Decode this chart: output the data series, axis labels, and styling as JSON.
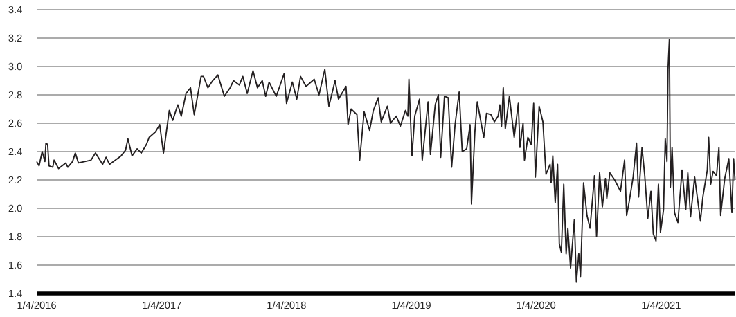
{
  "chart_data": {
    "type": "line",
    "color": "#231f20",
    "grid": "y",
    "xlim": [
      "2016-01-04",
      "2021-08-09"
    ],
    "ylim": [
      1.4,
      3.4
    ],
    "xticks": [
      {
        "value": "2016-01-04",
        "label": "1/4/2016"
      },
      {
        "value": "2017-01-04",
        "label": "1/4/2017"
      },
      {
        "value": "2018-01-04",
        "label": "1/4/2018"
      },
      {
        "value": "2019-01-04",
        "label": "1/4/2019"
      },
      {
        "value": "2020-01-04",
        "label": "1/4/2020"
      },
      {
        "value": "2021-01-04",
        "label": "1/4/2021"
      }
    ],
    "yticks": [
      1.4,
      1.6,
      1.8,
      {
        "value": 2,
        "label": "2.0"
      },
      2.2,
      2.4,
      2.6,
      2.8,
      {
        "value": 3,
        "label": "3.0"
      },
      3.2,
      3.4
    ],
    "x": [
      "2016-01-04",
      "2016-01-11",
      "2016-01-20",
      "2016-01-28",
      "2016-01-31",
      "2016-02-05",
      "2016-02-09",
      "2016-02-20",
      "2016-02-24",
      "2016-03-08",
      "2016-03-29",
      "2016-04-04",
      "2016-04-18",
      "2016-04-26",
      "2016-05-05",
      "2016-06-11",
      "2016-06-24",
      "2016-07-15",
      "2016-07-25",
      "2016-08-04",
      "2016-09-07",
      "2016-09-20",
      "2016-09-27",
      "2016-10-09",
      "2016-10-24",
      "2016-11-05",
      "2016-11-20",
      "2016-11-28",
      "2016-12-17",
      "2016-12-29",
      "2017-01-09",
      "2017-01-26",
      "2017-02-05",
      "2017-02-20",
      "2017-03-02",
      "2017-03-16",
      "2017-03-29",
      "2017-04-09",
      "2017-04-29",
      "2017-05-06",
      "2017-05-19",
      "2017-06-02",
      "2017-06-17",
      "2017-07-06",
      "2017-07-23",
      "2017-08-02",
      "2017-08-19",
      "2017-08-29",
      "2017-09-11",
      "2017-09-28",
      "2017-10-11",
      "2017-10-25",
      "2017-11-04",
      "2017-11-14",
      "2017-12-05",
      "2017-12-28",
      "2018-01-04",
      "2018-01-21",
      "2018-02-03",
      "2018-02-14",
      "2018-03-02",
      "2018-03-26",
      "2018-04-09",
      "2018-04-26",
      "2018-05-08",
      "2018-05-26",
      "2018-06-05",
      "2018-06-27",
      "2018-07-03",
      "2018-07-12",
      "2018-07-29",
      "2018-08-06",
      "2018-08-19",
      "2018-09-04",
      "2018-09-15",
      "2018-09-29",
      "2018-10-08",
      "2018-10-26",
      "2018-11-04",
      "2018-11-21",
      "2018-12-03",
      "2018-12-18",
      "2018-12-25",
      "2018-12-28",
      "2019-01-06",
      "2019-01-14",
      "2019-01-28",
      "2019-02-05",
      "2019-02-22",
      "2019-03-01",
      "2019-03-15",
      "2019-03-24",
      "2019-03-31",
      "2019-04-11",
      "2019-04-22",
      "2019-05-02",
      "2019-05-12",
      "2019-05-24",
      "2019-06-02",
      "2019-06-15",
      "2019-06-25",
      "2019-06-29",
      "2019-07-09",
      "2019-07-16",
      "2019-08-04",
      "2019-08-12",
      "2019-08-25",
      "2019-09-04",
      "2019-09-15",
      "2019-09-20",
      "2019-09-25",
      "2019-09-30",
      "2019-10-06",
      "2019-10-18",
      "2019-11-01",
      "2019-11-13",
      "2019-11-18",
      "2019-11-27",
      "2019-12-01",
      "2019-12-11",
      "2019-12-21",
      "2019-12-28",
      "2020-01-02",
      "2020-01-13",
      "2020-01-24",
      "2020-02-02",
      "2020-02-14",
      "2020-02-17",
      "2020-02-22",
      "2020-02-29",
      "2020-03-07",
      "2020-03-12",
      "2020-03-18",
      "2020-03-25",
      "2020-04-01",
      "2020-04-06",
      "2020-04-14",
      "2020-04-25",
      "2020-05-01",
      "2020-05-08",
      "2020-05-13",
      "2020-05-22",
      "2020-06-01",
      "2020-06-10",
      "2020-06-23",
      "2020-06-29",
      "2020-07-08",
      "2020-07-16",
      "2020-07-25",
      "2020-07-29",
      "2020-08-07",
      "2020-08-21",
      "2020-09-07",
      "2020-09-19",
      "2020-09-25",
      "2020-10-02",
      "2020-10-14",
      "2020-10-24",
      "2020-10-30",
      "2020-11-09",
      "2020-11-17",
      "2020-11-26",
      "2020-12-05",
      "2020-12-12",
      "2020-12-20",
      "2020-12-27",
      "2021-01-02",
      "2021-01-11",
      "2021-01-16",
      "2021-01-21",
      "2021-01-24",
      "2021-01-28",
      "2021-01-31",
      "2021-02-05",
      "2021-02-12",
      "2021-02-22",
      "2021-03-06",
      "2021-03-17",
      "2021-03-23",
      "2021-03-31",
      "2021-04-12",
      "2021-04-29",
      "2021-05-06",
      "2021-05-19",
      "2021-05-23",
      "2021-05-29",
      "2021-06-05",
      "2021-06-15",
      "2021-06-22",
      "2021-06-27",
      "2021-07-09",
      "2021-07-21",
      "2021-07-30",
      "2021-08-04",
      "2021-08-08"
    ],
    "values": [
      2.33,
      2.3,
      2.4,
      2.33,
      2.46,
      2.45,
      2.3,
      2.29,
      2.34,
      2.28,
      2.32,
      2.29,
      2.33,
      2.39,
      2.32,
      2.34,
      2.39,
      2.31,
      2.36,
      2.31,
      2.37,
      2.41,
      2.49,
      2.37,
      2.42,
      2.39,
      2.45,
      2.5,
      2.54,
      2.59,
      2.39,
      2.69,
      2.62,
      2.73,
      2.65,
      2.81,
      2.85,
      2.66,
      2.93,
      2.93,
      2.85,
      2.9,
      2.94,
      2.79,
      2.85,
      2.9,
      2.87,
      2.93,
      2.81,
      2.97,
      2.85,
      2.9,
      2.79,
      2.89,
      2.79,
      2.95,
      2.74,
      2.89,
      2.77,
      2.93,
      2.86,
      2.91,
      2.8,
      2.98,
      2.72,
      2.9,
      2.77,
      2.86,
      2.59,
      2.7,
      2.66,
      2.34,
      2.68,
      2.55,
      2.69,
      2.78,
      2.61,
      2.72,
      2.6,
      2.65,
      2.58,
      2.69,
      2.65,
      2.91,
      2.37,
      2.65,
      2.77,
      2.34,
      2.75,
      2.38,
      2.73,
      2.8,
      2.36,
      2.79,
      2.78,
      2.29,
      2.59,
      2.82,
      2.4,
      2.42,
      2.59,
      2.03,
      2.54,
      2.75,
      2.5,
      2.67,
      2.66,
      2.61,
      2.65,
      2.73,
      2.58,
      2.85,
      2.56,
      2.79,
      2.5,
      2.74,
      2.43,
      2.6,
      2.34,
      2.5,
      2.45,
      2.74,
      2.22,
      2.72,
      2.61,
      2.24,
      2.31,
      2.18,
      2.37,
      2.04,
      2.31,
      1.75,
      1.69,
      2.17,
      1.68,
      1.86,
      1.58,
      1.92,
      1.48,
      1.68,
      1.52,
      2.18,
      1.95,
      1.86,
      2.23,
      1.8,
      2.25,
      2.01,
      2.21,
      2.07,
      2.25,
      2.2,
      2.12,
      2.34,
      1.95,
      2.04,
      2.22,
      2.46,
      2.08,
      2.43,
      2.23,
      1.93,
      2.12,
      1.82,
      1.77,
      2.17,
      1.83,
      1.99,
      2.49,
      2.33,
      2.98,
      3.19,
      2.15,
      2.43,
      1.97,
      1.9,
      2.27,
      1.99,
      2.25,
      1.94,
      2.22,
      1.91,
      2.08,
      2.27,
      2.5,
      2.17,
      2.26,
      2.23,
      2.43,
      1.95,
      2.21,
      2.35,
      1.97,
      2.35,
      2.2
    ]
  }
}
